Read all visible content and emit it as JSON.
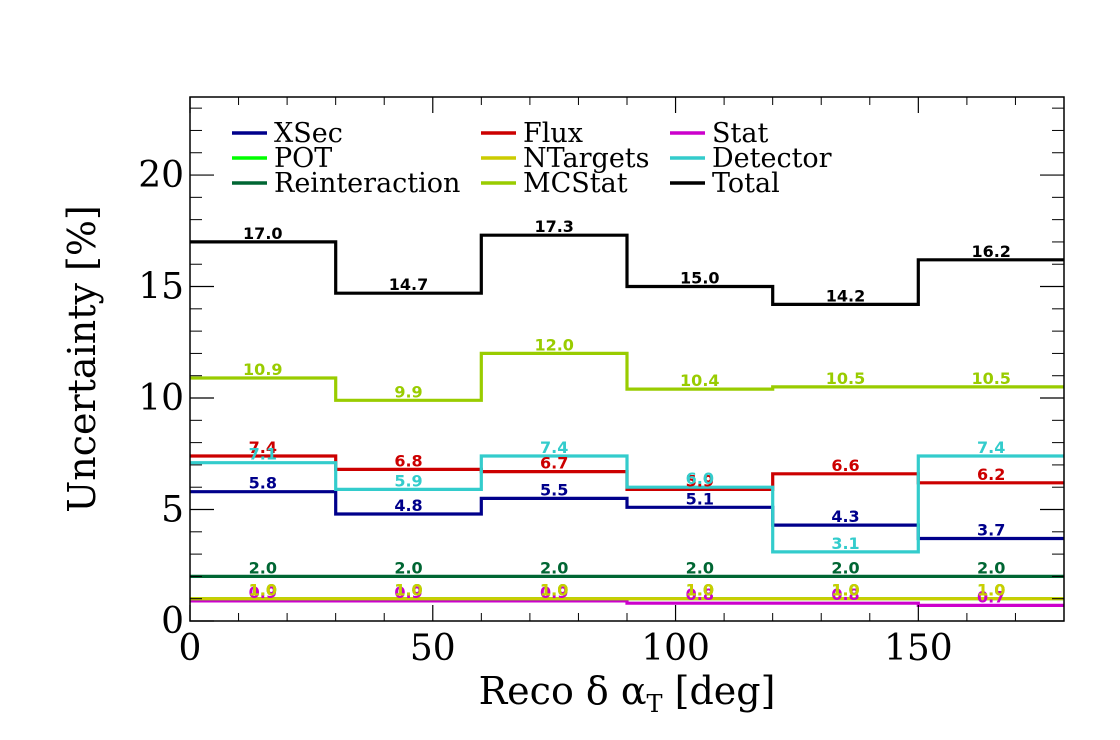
{
  "chart_data": {
    "type": "line",
    "step": true,
    "xlabel": "Reco δ α_T [deg]",
    "xlabel_parts": {
      "prefix": "Reco δ α",
      "subscript": "T",
      "suffix": " [deg]"
    },
    "ylabel": "Uncertainty [%]",
    "xlim": [
      0,
      180
    ],
    "ylim": [
      0,
      23.5
    ],
    "x_ticks": [
      "0",
      "50",
      "100",
      "150"
    ],
    "x_tick_values": [
      0,
      50,
      100,
      150
    ],
    "y_ticks": [
      "0",
      "5",
      "10",
      "15",
      "20"
    ],
    "y_tick_values": [
      0,
      5,
      10,
      15,
      20
    ],
    "bin_edges": [
      0,
      30,
      60,
      90,
      120,
      150,
      180
    ],
    "grid": false,
    "legend_position": "top",
    "series": [
      {
        "name": "XSec",
        "color": "#00008b",
        "values": [
          5.8,
          4.8,
          5.5,
          5.1,
          4.3,
          3.7
        ],
        "labels": [
          "5.8",
          "4.8",
          "5.5",
          "5.1",
          "4.3",
          "3.7"
        ]
      },
      {
        "name": "Flux",
        "color": "#cc0000",
        "values": [
          7.4,
          6.8,
          6.7,
          5.9,
          6.6,
          6.2
        ],
        "labels": [
          "7.4",
          "6.8",
          "6.7",
          "5.9",
          "6.6",
          "6.2"
        ]
      },
      {
        "name": "Stat",
        "color": "#cc00cc",
        "values": [
          0.9,
          0.9,
          0.9,
          0.8,
          0.8,
          0.7
        ],
        "labels": [
          "0.9",
          "0.9",
          "0.9",
          "0.8",
          "0.8",
          "0.7"
        ]
      },
      {
        "name": "POT",
        "color": "#00ff00",
        "values": [
          1.0,
          1.0,
          1.0,
          1.0,
          1.0,
          1.0
        ],
        "labels": [
          "1.0",
          "1.0",
          "1.0",
          "1.0",
          "1.0",
          "1.0"
        ]
      },
      {
        "name": "NTargets",
        "color": "#cccc00",
        "values": [
          1.0,
          1.0,
          1.0,
          1.0,
          1.0,
          1.0
        ],
        "labels": [
          "1.0",
          "1.0",
          "1.0",
          "1.0",
          "1.0",
          "1.0"
        ]
      },
      {
        "name": "Detector",
        "color": "#33cccc",
        "values": [
          7.1,
          5.9,
          7.4,
          6.0,
          3.1,
          7.4
        ],
        "labels": [
          "7.1",
          "5.9",
          "7.4",
          "6.0",
          "3.1",
          "7.4"
        ]
      },
      {
        "name": "Reinteraction",
        "color": "#006633",
        "values": [
          2.0,
          2.0,
          2.0,
          2.0,
          2.0,
          2.0
        ],
        "labels": [
          "2.0",
          "2.0",
          "2.0",
          "2.0",
          "2.0",
          "2.0"
        ]
      },
      {
        "name": "MCStat",
        "color": "#99cc00",
        "values": [
          10.9,
          9.9,
          12.0,
          10.4,
          10.5,
          10.5
        ],
        "labels": [
          "10.9",
          "9.9",
          "12.0",
          "10.4",
          "10.5",
          "10.5"
        ]
      },
      {
        "name": "Total",
        "color": "#000000",
        "values": [
          17.0,
          14.7,
          17.3,
          15.0,
          14.2,
          16.2
        ],
        "labels": [
          "17.0",
          "14.7",
          "17.3",
          "15.0",
          "14.2",
          "16.2"
        ]
      }
    ]
  }
}
